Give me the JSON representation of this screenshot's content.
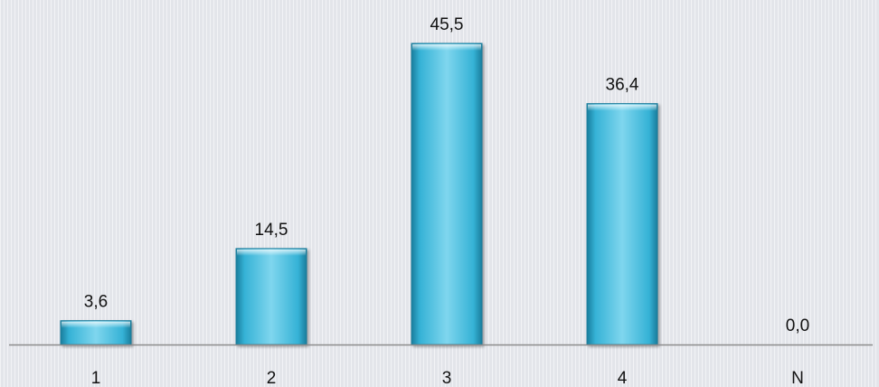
{
  "colors": {
    "bar_fill": "#35b2d6",
    "bar_light": "#7fd6ee",
    "bar_dark": "#1a7d9c",
    "axis": "#8c8c8c",
    "background": "#e3e5ea"
  },
  "chart_data": {
    "type": "bar",
    "categories": [
      "1",
      "2",
      "3",
      "4",
      "N"
    ],
    "values": [
      3.6,
      14.5,
      45.5,
      36.4,
      0.0
    ],
    "data_labels": [
      "3,6",
      "14,5",
      "45,5",
      "36,4",
      "0,0"
    ],
    "title": "",
    "xlabel": "",
    "ylabel": "",
    "ylim": [
      0,
      45.5
    ],
    "grid": false,
    "legend": "none"
  }
}
